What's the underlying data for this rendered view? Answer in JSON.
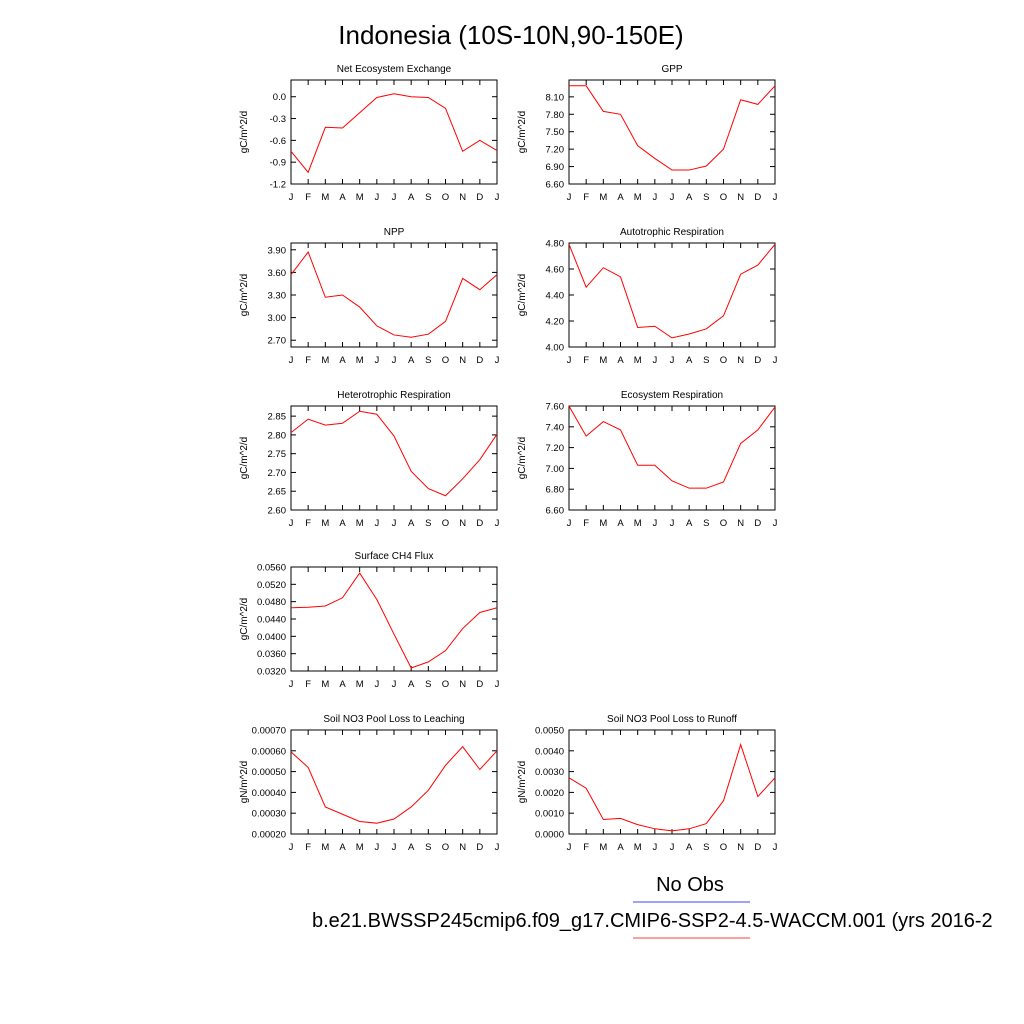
{
  "title": "Indonesia (10S-10N,90-150E)",
  "chart_data": [
    {
      "type": "line",
      "title": "Net Ecosystem Exchange",
      "ylabel": "gC/m^2/d",
      "categories": [
        "J",
        "F",
        "M",
        "A",
        "M",
        "J",
        "J",
        "A",
        "S",
        "O",
        "N",
        "D",
        "J"
      ],
      "color": "#ff0000",
      "values": [
        -0.75,
        -1.04,
        -0.42,
        -0.43,
        -0.22,
        -0.01,
        0.04,
        0.0,
        -0.01,
        -0.16,
        -0.75,
        -0.6,
        -0.74
      ],
      "ylim": [
        -1.2,
        0.23
      ],
      "yticks": [
        {
          "value": 0,
          "label": "0.0"
        },
        -0.3,
        -0.6,
        -0.9,
        -1.2
      ]
    },
    {
      "type": "line",
      "title": "GPP",
      "ylabel": "gC/m^2/d",
      "categories": [
        "J",
        "F",
        "M",
        "A",
        "M",
        "J",
        "J",
        "A",
        "S",
        "O",
        "N",
        "D",
        "J"
      ],
      "color": "#ff0000",
      "values": [
        8.29,
        8.29,
        7.85,
        7.8,
        7.26,
        7.04,
        6.84,
        6.84,
        6.91,
        7.2,
        8.05,
        7.97,
        8.29
      ],
      "ylim": [
        6.6,
        8.39
      ],
      "yticks": [
        {
          "value": 8.1,
          "label": "8.10"
        },
        {
          "value": 7.8,
          "label": "7.80"
        },
        {
          "value": 7.5,
          "label": "7.50"
        },
        {
          "value": 7.2,
          "label": "7.20"
        },
        {
          "value": 6.9,
          "label": "6.90"
        },
        {
          "value": 6.6,
          "label": "6.60"
        }
      ]
    },
    {
      "type": "line",
      "title": "NPP",
      "ylabel": "gC/m^2/d",
      "categories": [
        "J",
        "F",
        "M",
        "A",
        "M",
        "J",
        "J",
        "A",
        "S",
        "O",
        "N",
        "D",
        "J"
      ],
      "color": "#ff0000",
      "values": [
        3.57,
        3.87,
        3.27,
        3.3,
        3.14,
        2.89,
        2.77,
        2.74,
        2.78,
        2.95,
        3.52,
        3.37,
        3.57
      ],
      "ylim": [
        2.61,
        3.99
      ],
      "yticks": [
        {
          "value": 3.9,
          "label": "3.90"
        },
        {
          "value": 3.6,
          "label": "3.60"
        },
        {
          "value": 3.3,
          "label": "3.30"
        },
        {
          "value": 3.0,
          "label": "3.00"
        },
        {
          "value": 2.7,
          "label": "2.70"
        }
      ]
    },
    {
      "type": "line",
      "title": "Autotrophic Respiration",
      "ylabel": "gC/m^2/d",
      "categories": [
        "J",
        "F",
        "M",
        "A",
        "M",
        "J",
        "J",
        "A",
        "S",
        "O",
        "N",
        "D",
        "J"
      ],
      "color": "#ff0000",
      "values": [
        4.79,
        4.46,
        4.61,
        4.54,
        4.15,
        4.16,
        4.07,
        4.1,
        4.14,
        4.24,
        4.56,
        4.63,
        4.79
      ],
      "ylim": [
        4.0,
        4.8
      ],
      "yticks": [
        {
          "value": 4.8,
          "label": "4.80"
        },
        {
          "value": 4.6,
          "label": "4.60"
        },
        {
          "value": 4.4,
          "label": "4.40"
        },
        {
          "value": 4.2,
          "label": "4.20"
        },
        {
          "value": 4.0,
          "label": "4.00"
        }
      ]
    },
    {
      "type": "line",
      "title": "Heterotrophic Respiration",
      "ylabel": "gC/m^2/d",
      "categories": [
        "J",
        "F",
        "M",
        "A",
        "M",
        "J",
        "J",
        "A",
        "S",
        "O",
        "N",
        "D",
        "J"
      ],
      "color": "#ff0000",
      "values": [
        2.806,
        2.842,
        2.826,
        2.831,
        2.863,
        2.855,
        2.797,
        2.703,
        2.657,
        2.638,
        2.683,
        2.734,
        2.802
      ],
      "ylim": [
        2.6,
        2.877
      ],
      "yticks": [
        2.85,
        {
          "value": 2.8,
          "label": "2.80"
        },
        2.75,
        {
          "value": 2.7,
          "label": "2.70"
        },
        2.65,
        {
          "value": 2.6,
          "label": "2.60"
        }
      ]
    },
    {
      "type": "line",
      "title": "Ecosystem Respiration",
      "ylabel": "gC/m^2/d",
      "categories": [
        "J",
        "F",
        "M",
        "A",
        "M",
        "J",
        "J",
        "A",
        "S",
        "O",
        "N",
        "D",
        "J"
      ],
      "color": "#ff0000",
      "values": [
        7.6,
        7.31,
        7.45,
        7.37,
        7.03,
        7.03,
        6.88,
        6.81,
        6.81,
        6.87,
        7.24,
        7.37,
        7.59
      ],
      "ylim": [
        6.6,
        7.6
      ],
      "yticks": [
        {
          "value": 7.6,
          "label": "7.60"
        },
        {
          "value": 7.4,
          "label": "7.40"
        },
        {
          "value": 7.2,
          "label": "7.20"
        },
        {
          "value": 7.0,
          "label": "7.00"
        },
        {
          "value": 6.8,
          "label": "6.80"
        },
        {
          "value": 6.6,
          "label": "6.60"
        }
      ]
    },
    {
      "type": "line",
      "title": "Surface CH4 Flux",
      "ylabel": "gC/m^2/d",
      "categories": [
        "J",
        "F",
        "M",
        "A",
        "M",
        "J",
        "J",
        "A",
        "S",
        "O",
        "N",
        "D",
        "J"
      ],
      "color": "#ff0000",
      "values": [
        0.0466,
        0.0467,
        0.047,
        0.0489,
        0.0546,
        0.0485,
        0.0405,
        0.0327,
        0.0341,
        0.0367,
        0.0418,
        0.0455,
        0.0466
      ],
      "ylim": [
        0.032,
        0.056
      ],
      "yticks": [
        {
          "value": 0.056,
          "label": "0.0560"
        },
        {
          "value": 0.052,
          "label": "0.0520"
        },
        {
          "value": 0.048,
          "label": "0.0480"
        },
        {
          "value": 0.044,
          "label": "0.0440"
        },
        {
          "value": 0.04,
          "label": "0.0400"
        },
        {
          "value": 0.036,
          "label": "0.0360"
        },
        {
          "value": 0.032,
          "label": "0.0320"
        }
      ]
    },
    {
      "type": "line",
      "title": "Soil NO3 Pool Loss to Leaching",
      "ylabel": "gN/m^2/d",
      "categories": [
        "J",
        "F",
        "M",
        "A",
        "M",
        "J",
        "J",
        "A",
        "S",
        "O",
        "N",
        "D",
        "J"
      ],
      "color": "#ff0000",
      "values": [
        0.000595,
        0.00052,
        0.00033,
        0.000295,
        0.00026,
        0.000252,
        0.000272,
        0.00033,
        0.00041,
        0.00053,
        0.00062,
        0.00051,
        0.0006
      ],
      "ylim": [
        0.0002,
        0.0007
      ],
      "yticks": [
        {
          "value": 0.0007,
          "label": "0.00070"
        },
        {
          "value": 0.0006,
          "label": "0.00060"
        },
        {
          "value": 0.0005,
          "label": "0.00050"
        },
        {
          "value": 0.0004,
          "label": "0.00040"
        },
        {
          "value": 0.0003,
          "label": "0.00030"
        },
        {
          "value": 0.0002,
          "label": "0.00020"
        }
      ]
    },
    {
      "type": "line",
      "title": "Soil NO3 Pool Loss to Runoff",
      "ylabel": "gN/m^2/d",
      "categories": [
        "J",
        "F",
        "M",
        "A",
        "M",
        "J",
        "J",
        "A",
        "S",
        "O",
        "N",
        "D",
        "J"
      ],
      "color": "#ff0000",
      "values": [
        0.0027,
        0.0022,
        0.0007,
        0.00075,
        0.00045,
        0.00025,
        0.00015,
        0.00025,
        0.0005,
        0.0016,
        0.0043,
        0.0018,
        0.0027
      ],
      "ylim": [
        0.0,
        0.005
      ],
      "yticks": [
        {
          "value": 0.005,
          "label": "0.0050"
        },
        {
          "value": 0.004,
          "label": "0.0040"
        },
        {
          "value": 0.003,
          "label": "0.0030"
        },
        {
          "value": 0.002,
          "label": "0.0020"
        },
        {
          "value": 0.001,
          "label": "0.0010"
        },
        {
          "value": 0.0,
          "label": "0.0000"
        }
      ]
    }
  ],
  "legend": [
    {
      "label": "No Obs",
      "color": "#8080ff"
    },
    {
      "label": "b.e21.BWSSP245cmip6.f09_g17.CMIP6-SSP2-4.5-WACCM.001 (yrs 2016-2",
      "color": "#ff8080"
    }
  ]
}
